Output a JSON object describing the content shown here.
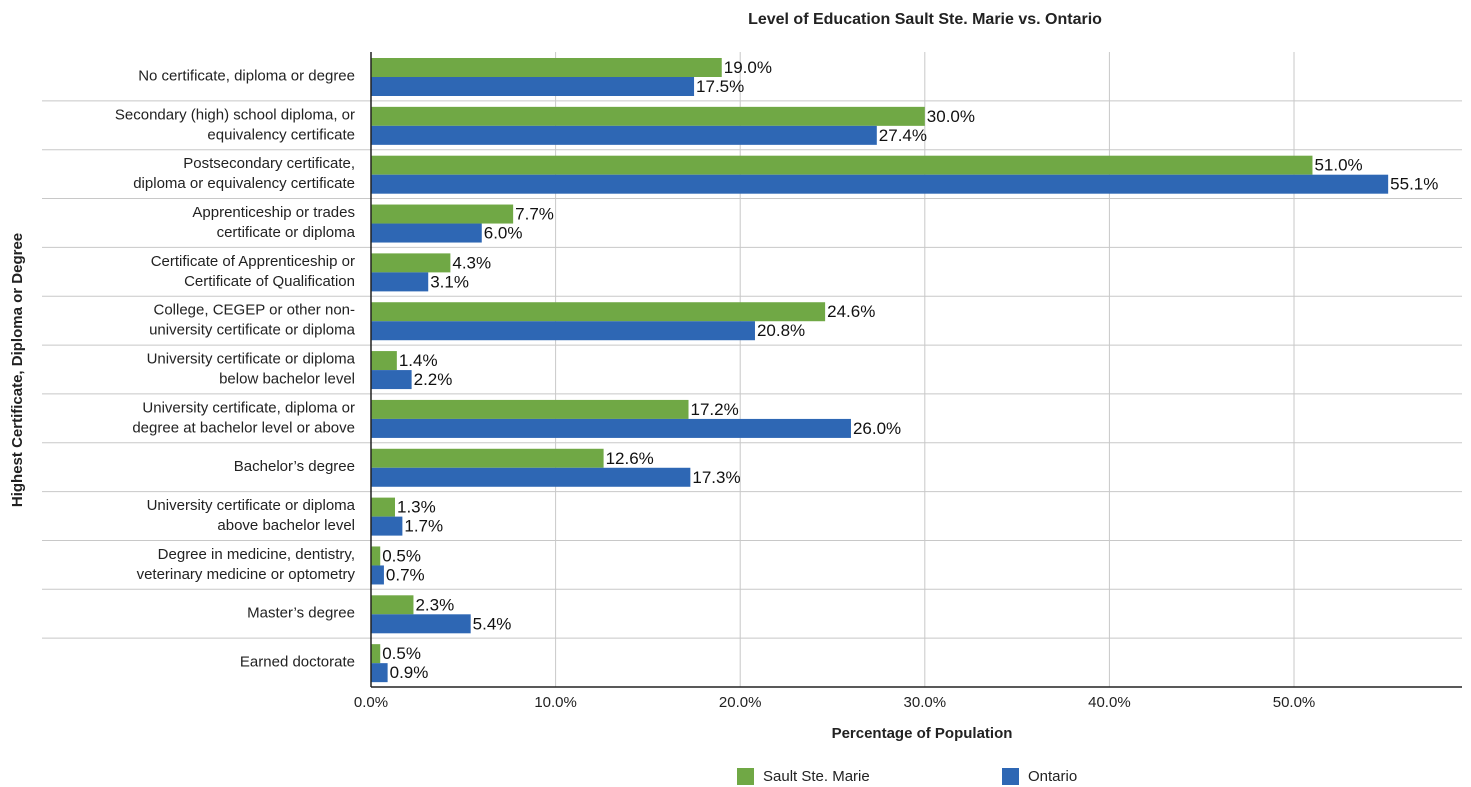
{
  "chart_data": {
    "type": "bar",
    "orientation": "horizontal",
    "title": "Level of Education Sault Ste. Marie vs. Ontario",
    "x_label": "Percentage of Population",
    "y_label": "Highest Certificate, Diploma or Degree",
    "categories": [
      [
        "No certificate, diploma or degree"
      ],
      [
        "Secondary (high) school diploma, or",
        "equivalency certificate"
      ],
      [
        "Postsecondary certificate,",
        "diploma or equivalency certificate"
      ],
      [
        "Apprenticeship or trades",
        "certificate or diploma"
      ],
      [
        "Certificate of Apprenticeship or",
        "Certificate of Qualification"
      ],
      [
        "College, CEGEP or other non-",
        "university certificate or diploma"
      ],
      [
        "University certificate or diploma",
        "below bachelor level"
      ],
      [
        "University certificate, diploma or",
        "degree at bachelor level or above"
      ],
      [
        "Bachelor’s degree"
      ],
      [
        "University certificate or diploma",
        "above bachelor level"
      ],
      [
        "Degree in medicine, dentistry,",
        "veterinary medicine or optometry"
      ],
      [
        "Master’s degree"
      ],
      [
        "Earned doctorate"
      ]
    ],
    "series": [
      {
        "name": "Sault Ste. Marie",
        "color": "#70a845",
        "values": [
          19.0,
          30.0,
          51.0,
          7.7,
          4.3,
          24.6,
          1.4,
          17.2,
          12.6,
          1.3,
          0.5,
          2.3,
          0.5
        ],
        "value_labels": [
          "19.0%",
          "30.0%",
          "51.0%",
          "7.7%",
          "4.3%",
          "24.6%",
          "1.4%",
          "17.2%",
          "12.6%",
          "1.3%",
          "0.5%",
          "2.3%",
          "0.5%"
        ]
      },
      {
        "name": "Ontario",
        "color": "#2e67b4",
        "values": [
          17.5,
          27.4,
          55.1,
          6.0,
          3.1,
          20.8,
          2.2,
          26.0,
          17.3,
          1.7,
          0.7,
          5.4,
          0.9
        ],
        "value_labels": [
          "17.5%",
          "27.4%",
          "55.1%",
          "6.0%",
          "3.1%",
          "20.8%",
          "2.2%",
          "26.0%",
          "17.3%",
          "1.7%",
          "0.7%",
          "5.4%",
          "0.9%"
        ]
      }
    ],
    "xlim": [
      0,
      59.1
    ],
    "xticks": [
      {
        "value": 0,
        "label": "0.0%"
      },
      {
        "value": 10,
        "label": "10.0%"
      },
      {
        "value": 20,
        "label": "20.0%"
      },
      {
        "value": 30,
        "label": "30.0%"
      },
      {
        "value": 40,
        "label": "40.0%"
      },
      {
        "value": 50,
        "label": "50.0%"
      }
    ],
    "grid": true,
    "legend": "bottom"
  }
}
